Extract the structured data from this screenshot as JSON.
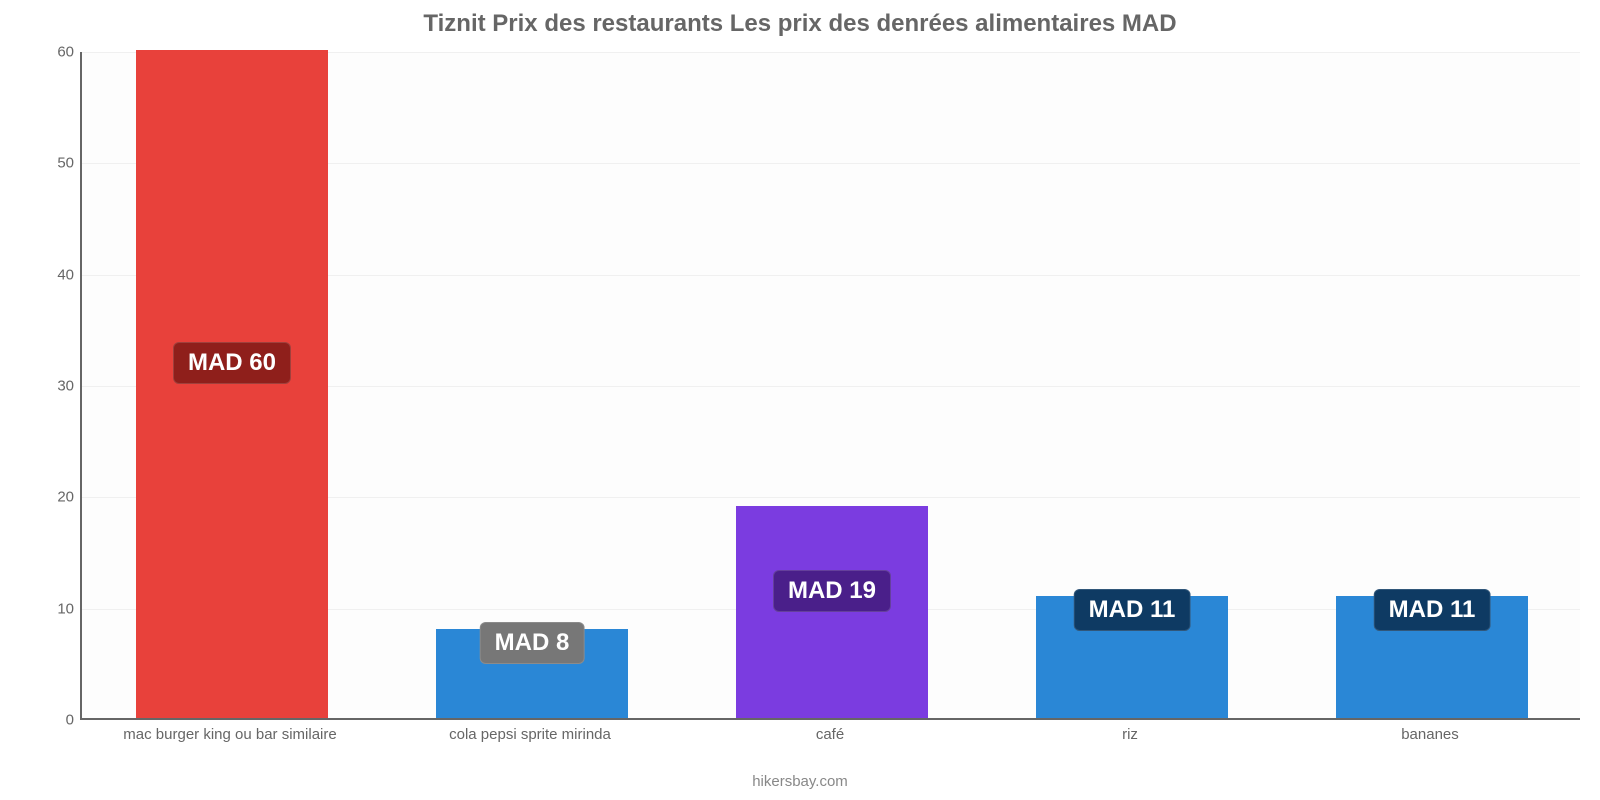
{
  "chart": {
    "type": "bar",
    "title": "Tiznit Prix des restaurants Les prix des denrées alimentaires MAD",
    "title_fontsize": 24,
    "title_color": "#666666",
    "title_weight": "bold",
    "footer": "hikersbay.com",
    "footer_fontsize": 15,
    "footer_color": "#888888",
    "background_color": "#ffffff",
    "plot_background": "#fdfdfd",
    "grid_color": "#f0f0f0",
    "axis_color": "#666666",
    "ylim": [
      0,
      60
    ],
    "ytick_step": 10,
    "ytick_fontsize": 15,
    "ytick_color": "#666666",
    "xtick_fontsize": 15,
    "xtick_color": "#666666",
    "bar_width_ratio": 0.64,
    "value_label_fontsize": 24,
    "value_label_text_color": "#ffffff",
    "categories": [
      "mac burger king ou bar similaire",
      "cola pepsi sprite mirinda",
      "café",
      "riz",
      "bananes"
    ],
    "values": [
      60,
      8,
      19,
      11,
      11
    ],
    "value_labels": [
      "MAD 60",
      "MAD 8",
      "MAD 19",
      "MAD 11",
      "MAD 11"
    ],
    "bar_colors": [
      "#e8413b",
      "#2a87d6",
      "#7b3ce0",
      "#2a87d6",
      "#2a87d6"
    ],
    "value_label_bg_colors": [
      "#8f1f1b",
      "#777777",
      "#4a1f8a",
      "#0e3a63",
      "#0e3a63"
    ]
  }
}
